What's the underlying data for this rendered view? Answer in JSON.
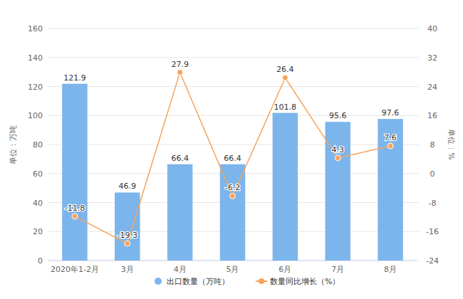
{
  "chart_data": {
    "type": "bar",
    "categories": [
      "2020年1-2月",
      "3月",
      "4月",
      "5月",
      "6月",
      "7月",
      "8月"
    ],
    "series": [
      {
        "name": "出口数量（万吨）",
        "type": "bar",
        "color": "#7cb5ec",
        "values": [
          121.9,
          46.9,
          66.4,
          66.4,
          101.8,
          95.6,
          97.6
        ]
      },
      {
        "name": "数量同比增长（%）",
        "type": "line",
        "axis": "y2",
        "color": "#f7a35c",
        "marker": "circle",
        "values": [
          -11.8,
          -19.3,
          27.9,
          -6.2,
          26.4,
          4.3,
          7.6
        ]
      }
    ],
    "y_label": "单位：万吨",
    "y2_label": "单位：%",
    "ylim": [
      0,
      160
    ],
    "yticks": [
      0,
      20,
      40,
      60,
      80,
      100,
      120,
      140,
      160
    ],
    "y2lim": [
      -24,
      40
    ],
    "y2ticks": [
      -24,
      -16,
      -8,
      0,
      8,
      16,
      24,
      32,
      40
    ],
    "grid": true,
    "data_labels": true,
    "legend": "bottom"
  }
}
